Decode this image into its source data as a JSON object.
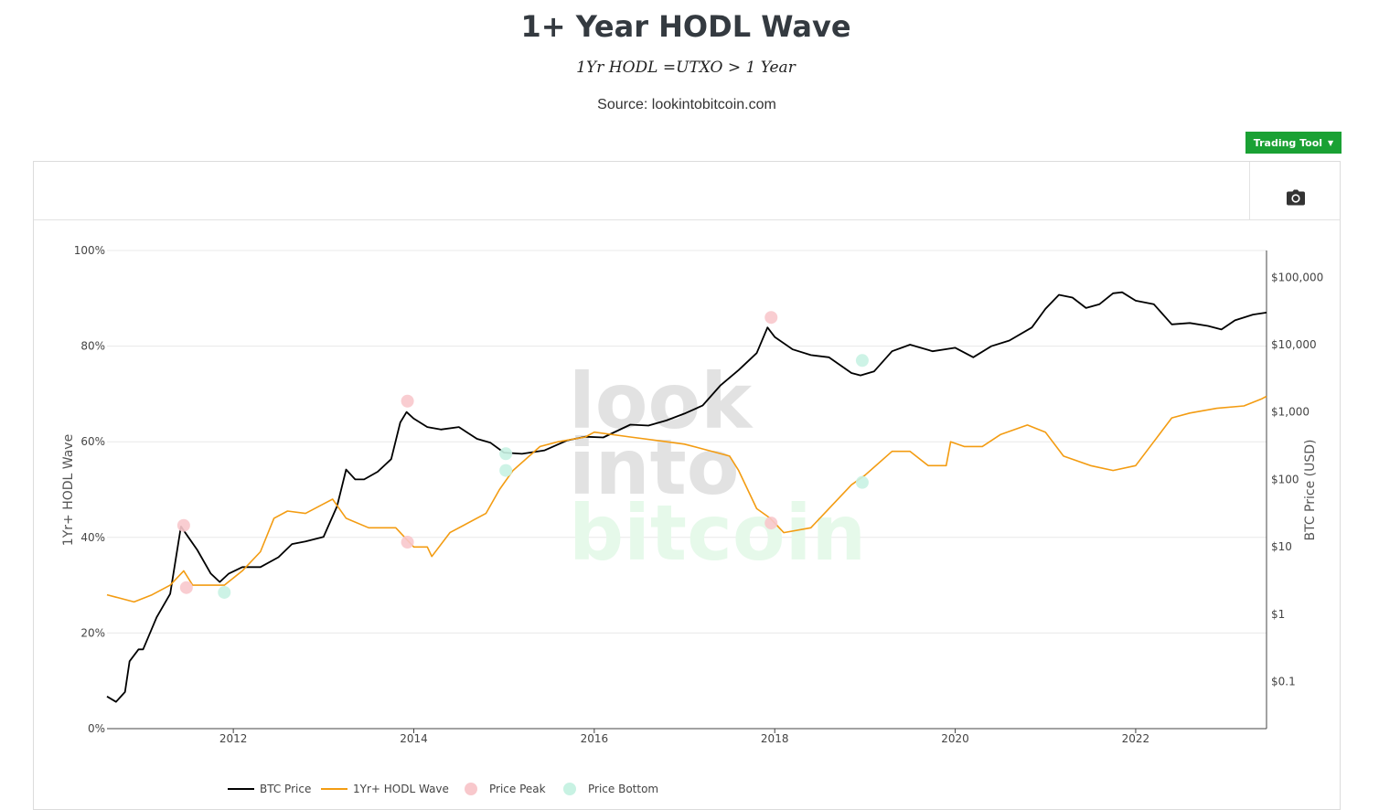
{
  "header": {
    "title": "1+ Year HODL Wave",
    "formula": "1Yr HODL =UTXO > 1 Year",
    "source": "Source: lookintobitcoin.com"
  },
  "toolbar": {
    "trading_tool_label": "Trading Tool",
    "camera_icon": "camera-icon"
  },
  "watermark": {
    "line1": "look",
    "line2": "into",
    "line3": "bitcoin"
  },
  "chart_data": {
    "type": "line",
    "title": "",
    "xlabel": "",
    "ylabel_left": "1Yr+ HODL Wave",
    "ylabel_right": "BTC Price (USD)",
    "x_range": [
      2010.6,
      2023.45
    ],
    "x_ticks": [
      2012,
      2014,
      2016,
      2018,
      2020,
      2022
    ],
    "y_left_range": [
      0,
      100
    ],
    "y_left_ticks": [
      "0%",
      "20%",
      "40%",
      "60%",
      "80%",
      "100%"
    ],
    "y_right_scale": "log",
    "y_right_range": [
      0.02,
      250000
    ],
    "y_right_ticks": [
      {
        "value": 0.1,
        "label": "$0.1"
      },
      {
        "value": 1,
        "label": "$1"
      },
      {
        "value": 10,
        "label": "$10"
      },
      {
        "value": 100,
        "label": "$100"
      },
      {
        "value": 1000,
        "label": "$1,000"
      },
      {
        "value": 10000,
        "label": "$10,000"
      },
      {
        "value": 100000,
        "label": "$100,000"
      }
    ],
    "grid": true,
    "legend_position": "bottom-left",
    "colors": {
      "btc": "#000000",
      "hodl": "#f39c12",
      "peak": "#f8c8cc",
      "bottom": "#c8f2e3"
    },
    "series": [
      {
        "name": "BTC Price",
        "axis": "right",
        "x": [
          2010.6,
          2010.7,
          2010.8,
          2010.85,
          2010.95,
          2011.0,
          2011.15,
          2011.3,
          2011.42,
          2011.5,
          2011.6,
          2011.75,
          2011.85,
          2011.95,
          2012.1,
          2012.3,
          2012.5,
          2012.65,
          2012.8,
          2013.0,
          2013.15,
          2013.25,
          2013.35,
          2013.45,
          2013.6,
          2013.75,
          2013.85,
          2013.92,
          2014.0,
          2014.15,
          2014.3,
          2014.5,
          2014.7,
          2014.85,
          2015.0,
          2015.2,
          2015.45,
          2015.7,
          2015.9,
          2016.1,
          2016.4,
          2016.6,
          2016.8,
          2017.0,
          2017.2,
          2017.4,
          2017.6,
          2017.8,
          2017.92,
          2018.0,
          2018.2,
          2018.4,
          2018.6,
          2018.85,
          2018.95,
          2019.1,
          2019.3,
          2019.5,
          2019.75,
          2020.0,
          2020.2,
          2020.4,
          2020.6,
          2020.85,
          2021.0,
          2021.15,
          2021.3,
          2021.45,
          2021.6,
          2021.75,
          2021.85,
          2022.0,
          2022.2,
          2022.4,
          2022.6,
          2022.8,
          2022.95,
          2023.1,
          2023.3,
          2023.45
        ],
        "y": [
          0.06,
          0.05,
          0.07,
          0.2,
          0.3,
          0.3,
          0.9,
          2,
          20,
          14,
          9,
          4,
          3,
          4,
          5,
          5,
          7,
          11,
          12,
          14,
          40,
          140,
          100,
          100,
          130,
          200,
          700,
          1000,
          800,
          600,
          550,
          600,
          400,
          350,
          250,
          240,
          270,
          380,
          430,
          420,
          650,
          630,
          750,
          950,
          1250,
          2500,
          4200,
          7500,
          18000,
          13000,
          8500,
          7000,
          6500,
          3800,
          3500,
          4000,
          8000,
          10000,
          8000,
          9000,
          6500,
          9500,
          11500,
          18000,
          34000,
          55000,
          50000,
          35000,
          40000,
          58000,
          60000,
          45000,
          40000,
          20000,
          21000,
          19000,
          16800,
          23000,
          28000,
          30000
        ]
      },
      {
        "name": "1Yr+ HODL Wave",
        "axis": "left",
        "x": [
          2010.6,
          2010.9,
          2011.1,
          2011.3,
          2011.45,
          2011.55,
          2011.7,
          2011.9,
          2012.1,
          2012.3,
          2012.45,
          2012.6,
          2012.8,
          2013.0,
          2013.1,
          2013.25,
          2013.5,
          2013.8,
          2013.9,
          2014.0,
          2014.15,
          2014.2,
          2014.4,
          2014.8,
          2014.95,
          2015.1,
          2015.4,
          2015.6,
          2015.9,
          2016.0,
          2016.4,
          2016.8,
          2017.0,
          2017.2,
          2017.5,
          2017.6,
          2017.8,
          2017.95,
          2018.1,
          2018.4,
          2018.6,
          2018.85,
          2019.0,
          2019.3,
          2019.5,
          2019.7,
          2019.9,
          2019.95,
          2020.1,
          2020.3,
          2020.5,
          2020.8,
          2021.0,
          2021.2,
          2021.5,
          2021.75,
          2022.0,
          2022.2,
          2022.4,
          2022.6,
          2022.9,
          2023.2,
          2023.4,
          2023.45
        ],
        "y": [
          28,
          26.5,
          28,
          30,
          33,
          30,
          30,
          30,
          33,
          37,
          44,
          45.5,
          45,
          47,
          48,
          44,
          42,
          42,
          40,
          38,
          38,
          36,
          41,
          45,
          50,
          54,
          59,
          60,
          61,
          62,
          61,
          60,
          59.5,
          58.5,
          57,
          54,
          46,
          44,
          41,
          42,
          46,
          51,
          53,
          58,
          58,
          55,
          55,
          60,
          59,
          59,
          61.5,
          63.5,
          62,
          57,
          55,
          54,
          55,
          60,
          65,
          66,
          67,
          67.5,
          69,
          69.5
        ]
      }
    ],
    "markers": [
      {
        "name": "Price Peak",
        "points": [
          {
            "x": 2011.45,
            "y": 42.5
          },
          {
            "x": 2011.48,
            "y": 29.5
          },
          {
            "x": 2013.93,
            "y": 68.5
          },
          {
            "x": 2013.93,
            "y": 39
          },
          {
            "x": 2017.96,
            "y": 86
          },
          {
            "x": 2017.96,
            "y": 43
          }
        ]
      },
      {
        "name": "Price Bottom",
        "points": [
          {
            "x": 2011.9,
            "y": 28.5
          },
          {
            "x": 2015.02,
            "y": 57.5
          },
          {
            "x": 2015.02,
            "y": 54
          },
          {
            "x": 2018.97,
            "y": 77
          },
          {
            "x": 2018.97,
            "y": 51.5
          }
        ]
      }
    ]
  }
}
